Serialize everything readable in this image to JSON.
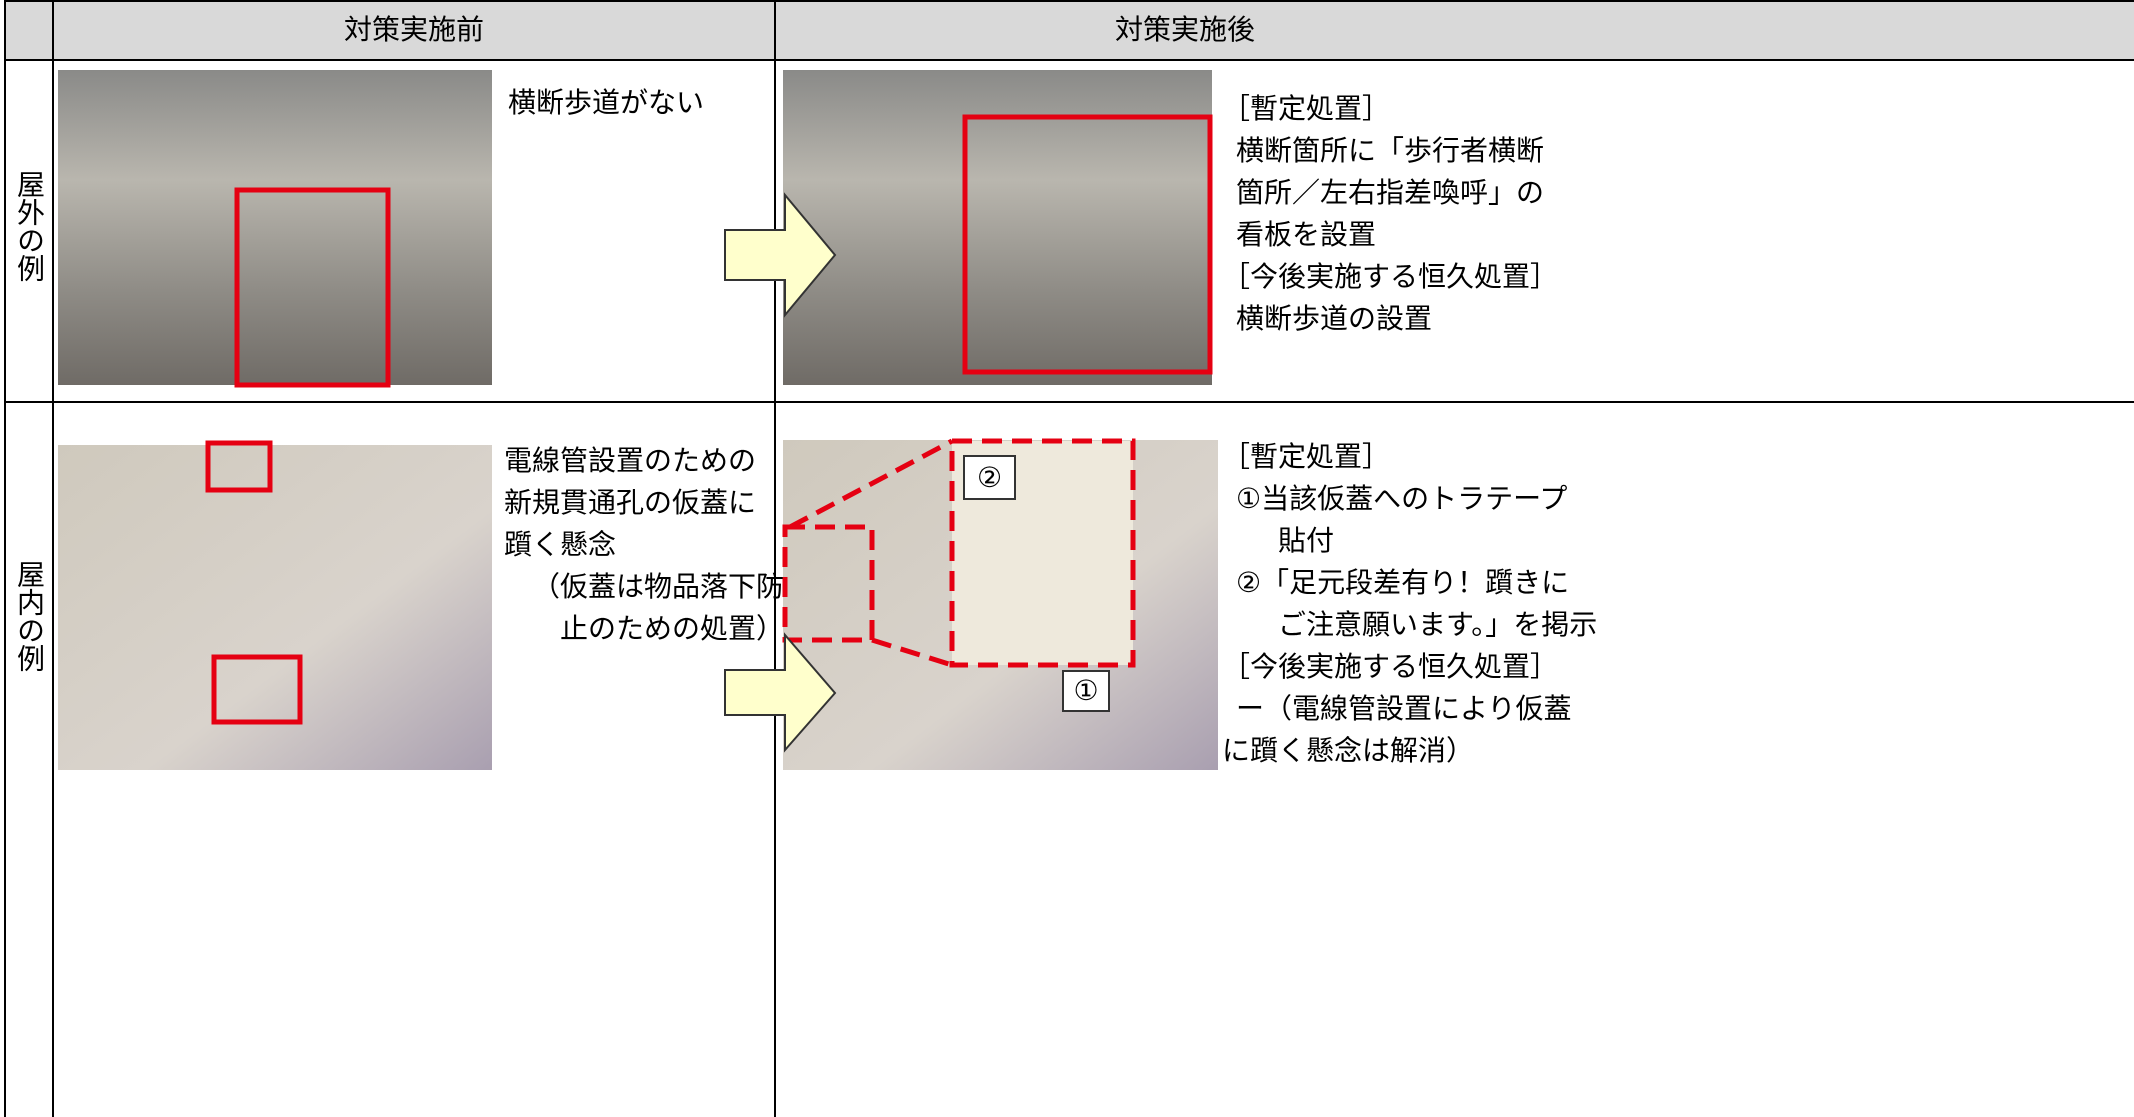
{
  "header": {
    "before": "対策実施前",
    "after": "対策実施後"
  },
  "rows": [
    {
      "label": "屋外の例",
      "before_text": [
        "横断歩道がない"
      ],
      "after_text": [
        "［暫定処置］",
        "横断箇所に「歩行者横断",
        "箇所／左右指差喚呼」の",
        "看板を設置",
        "［今後実施する恒久処置］",
        "横断歩道の設置"
      ]
    },
    {
      "label": "屋内の例",
      "before_text": [
        "電線管設置のための",
        "新規貫通孔の仮蓋に",
        "躓く懸念",
        "（仮蓋は物品落下防",
        "止のための処置）"
      ],
      "after_text": [
        "［暫定処置］",
        "①当該仮蓋へのトラテープ",
        "貼付",
        "②「足元段差有り！躓きに",
        "ご注意願います。」を掲示",
        "［今後実施する恒久処置］",
        "ー（電線管設置により仮蓋",
        "に躓く懸念は解消）"
      ],
      "photo_labels": [
        "②",
        "①"
      ]
    }
  ]
}
